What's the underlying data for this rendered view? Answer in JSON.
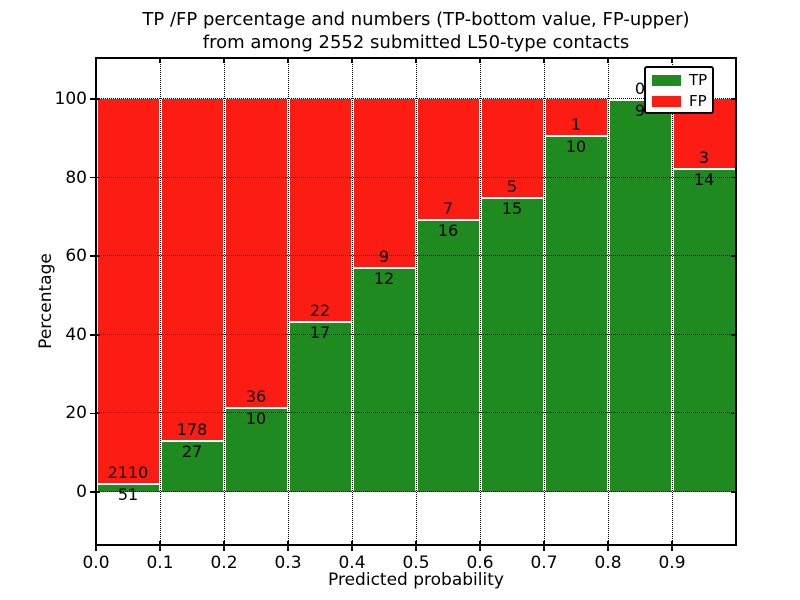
{
  "chart_data": {
    "type": "bar",
    "stacked": true,
    "title_line1": "TP /FP percentage and numbers (TP-bottom value, FP-upper)",
    "title_line2": "from among 2552 submitted L50-type contacts",
    "xlabel": "Predicted probability",
    "ylabel": "Percentage",
    "x_tick_labels": [
      "0.0",
      "0.1",
      "0.2",
      "0.3",
      "0.4",
      "0.5",
      "0.6",
      "0.7",
      "0.8",
      "0.9"
    ],
    "y_tick_labels": [
      "0",
      "20",
      "40",
      "60",
      "80",
      "100"
    ],
    "xlim": [
      0.0,
      1.0
    ],
    "ylim": [
      -13.5,
      110
    ],
    "grid": true,
    "total_contacts": 2552,
    "bins": [
      {
        "range": "0.0-0.1",
        "tp": 51,
        "fp": 2110,
        "tp_pct": 2.36
      },
      {
        "range": "0.1-0.2",
        "tp": 27,
        "fp": 178,
        "tp_pct": 13.17
      },
      {
        "range": "0.2-0.3",
        "tp": 10,
        "fp": 36,
        "tp_pct": 21.74
      },
      {
        "range": "0.3-0.4",
        "tp": 17,
        "fp": 22,
        "tp_pct": 43.59
      },
      {
        "range": "0.4-0.5",
        "tp": 12,
        "fp": 9,
        "tp_pct": 57.14
      },
      {
        "range": "0.5-0.6",
        "tp": 16,
        "fp": 7,
        "tp_pct": 69.57
      },
      {
        "range": "0.6-0.7",
        "tp": 15,
        "fp": 5,
        "tp_pct": 75.0
      },
      {
        "range": "0.7-0.8",
        "tp": 10,
        "fp": 1,
        "tp_pct": 90.91
      },
      {
        "range": "0.8-0.9",
        "tp": 9,
        "fp": 0,
        "tp_pct": 100.0
      },
      {
        "range": "0.9-1.0",
        "tp": 14,
        "fp": 3,
        "tp_pct": 82.35
      }
    ],
    "colors": {
      "tp": "#1f8a1f",
      "fp": "#fb1c13"
    },
    "legend": {
      "position": "upper right",
      "entries": [
        {
          "label": "TP",
          "color": "#1f8a1f"
        },
        {
          "label": "FP",
          "color": "#fb1c13"
        }
      ]
    }
  }
}
